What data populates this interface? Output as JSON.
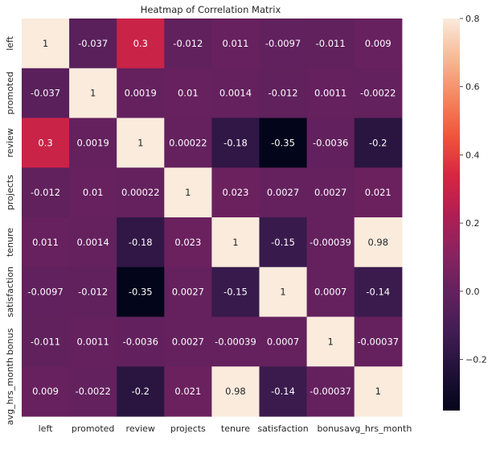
{
  "chart_data": {
    "type": "heatmap",
    "title": "Heatmap of Correlation Matrix",
    "x_labels": [
      "left",
      "promoted",
      "review",
      "projects",
      "tenure",
      "satisfaction",
      "bonus",
      "avg_hrs_month"
    ],
    "y_labels": [
      "left",
      "promoted",
      "review",
      "projects",
      "tenure",
      "satisfaction",
      "bonus",
      "avg_hrs_month"
    ],
    "matrix": [
      [
        1,
        -0.037,
        0.3,
        -0.012,
        0.011,
        -0.0097,
        -0.011,
        0.009
      ],
      [
        -0.037,
        1,
        0.0019,
        0.01,
        0.0014,
        -0.012,
        0.0011,
        -0.0022
      ],
      [
        0.3,
        0.0019,
        1,
        0.00022,
        -0.18,
        -0.35,
        -0.0036,
        -0.2
      ],
      [
        -0.012,
        0.01,
        0.00022,
        1,
        0.023,
        0.0027,
        0.0027,
        0.021
      ],
      [
        0.011,
        0.0014,
        -0.18,
        0.023,
        1,
        -0.15,
        -0.00039,
        0.98
      ],
      [
        -0.0097,
        -0.012,
        -0.35,
        0.0027,
        -0.15,
        1,
        0.0007,
        -0.14
      ],
      [
        -0.011,
        0.0011,
        -0.0036,
        0.0027,
        -0.00039,
        0.0007,
        1,
        -0.00037
      ],
      [
        0.009,
        -0.0022,
        -0.2,
        0.021,
        0.98,
        -0.14,
        -0.00037,
        1
      ]
    ],
    "cell_labels": [
      [
        "1",
        "-0.037",
        "0.3",
        "-0.012",
        "0.011",
        "-0.0097",
        "-0.011",
        "0.009"
      ],
      [
        "-0.037",
        "1",
        "0.0019",
        "0.01",
        "0.0014",
        "-0.012",
        "0.0011",
        "-0.0022"
      ],
      [
        "0.3",
        "0.0019",
        "1",
        "0.00022",
        "-0.18",
        "-0.35",
        "-0.0036",
        "-0.2"
      ],
      [
        "-0.012",
        "0.01",
        "0.00022",
        "1",
        "0.023",
        "0.0027",
        "0.0027",
        "0.021"
      ],
      [
        "0.011",
        "0.0014",
        "-0.18",
        "0.023",
        "1",
        "-0.15",
        "-0.00039",
        "0.98"
      ],
      [
        "-0.0097",
        "-0.012",
        "-0.35",
        "0.0027",
        "-0.15",
        "1",
        "0.0007",
        "-0.14"
      ],
      [
        "-0.011",
        "0.0011",
        "-0.0036",
        "0.0027",
        "-0.00039",
        "0.0007",
        "1",
        "-0.00037"
      ],
      [
        "0.009",
        "-0.0022",
        "-0.2",
        "0.021",
        "0.98",
        "-0.14",
        "-0.00037",
        "1"
      ]
    ],
    "colorbar": {
      "range": [
        -0.35,
        0.8
      ],
      "ticks": [
        -0.2,
        0.0,
        0.2,
        0.4,
        0.6,
        0.8
      ],
      "tick_labels": [
        "−0.2",
        "0.0",
        "0.2",
        "0.4",
        "0.6",
        "0.8"
      ]
    },
    "colormap": "rocket"
  }
}
